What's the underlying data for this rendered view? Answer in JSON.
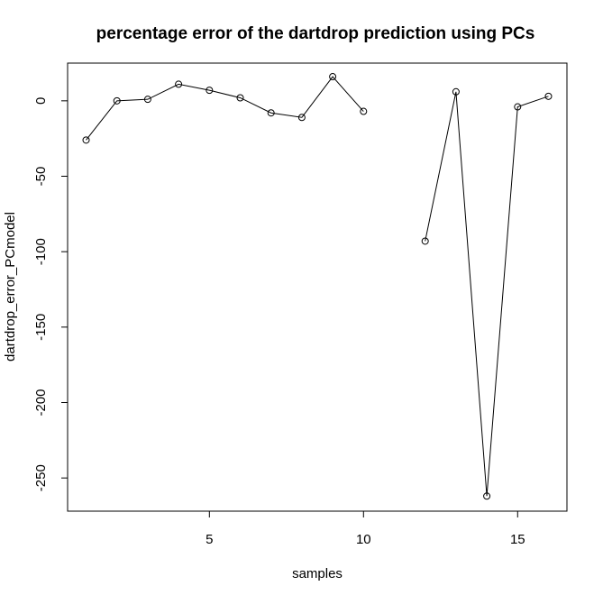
{
  "chart_data": {
    "type": "line",
    "title": "percentage error of the dartdrop prediction using PCs",
    "xlabel": "samples",
    "ylabel": "dartdrop_error_PCmodel",
    "xlim": [
      0.4,
      16.6
    ],
    "ylim": [
      -272,
      25
    ],
    "xticks": [
      5,
      10,
      15
    ],
    "yticks": [
      0,
      -50,
      -100,
      -150,
      -200,
      -250
    ],
    "grid": false,
    "series": [
      {
        "x": [
          1,
          2,
          3,
          4,
          5,
          6,
          7,
          8,
          9,
          10,
          11,
          12,
          13,
          14,
          15,
          16
        ],
        "values": [
          -26,
          0,
          1,
          11,
          7,
          2,
          -8,
          -11,
          16,
          -7,
          null,
          -93,
          6,
          -262,
          -4,
          3
        ]
      }
    ]
  }
}
